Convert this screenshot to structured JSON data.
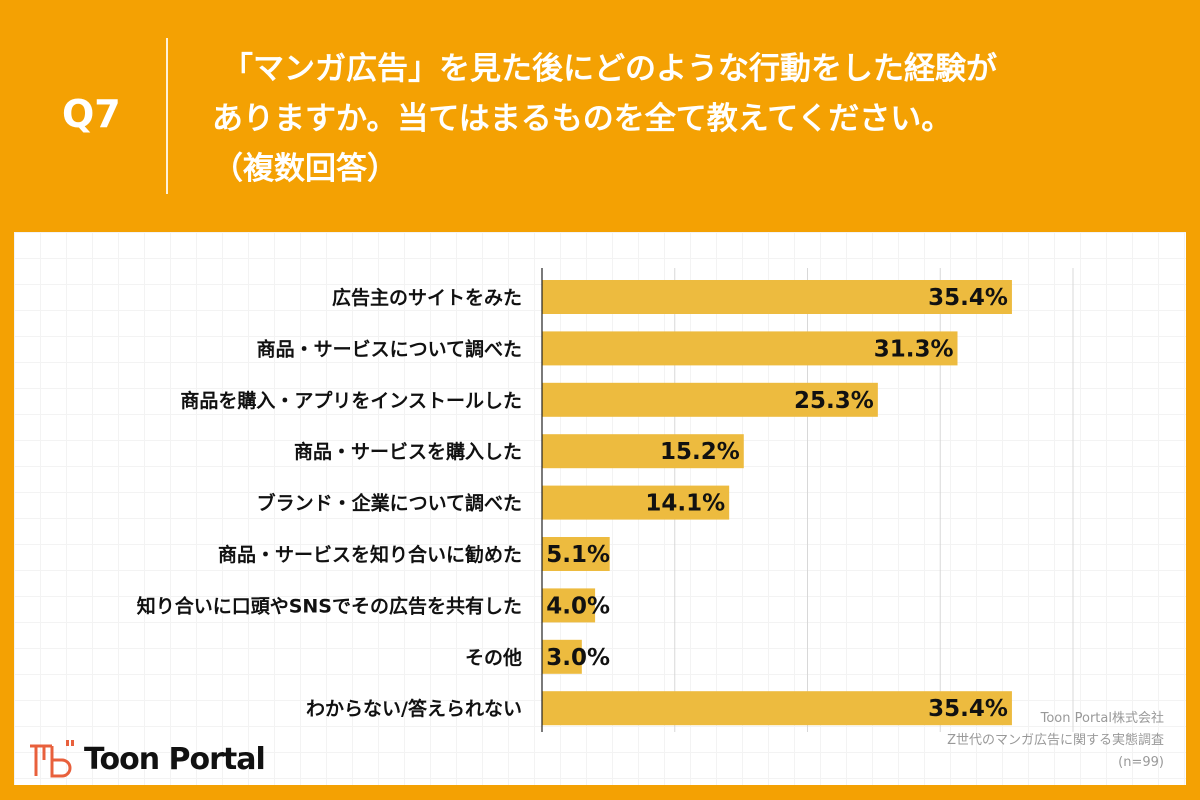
{
  "header": {
    "question_no": "Q7",
    "question_lines": [
      "「マンガ広告」を見た後にどのような行動をした経験が",
      "ありますか。当てはまるものを全て教えてください。",
      "（複数回答）"
    ]
  },
  "colors": {
    "background": "#F4A103",
    "bar": "#EDBB3F"
  },
  "chart_data": {
    "type": "bar",
    "orientation": "horizontal",
    "categories": [
      "広告主のサイトをみた",
      "商品・サービスについて調べた",
      "商品を購入・アプリをインストールした",
      "商品・サービスを購入した",
      "ブランド・企業について調べた",
      "商品・サービスを知り合いに勧めた",
      "知り合いに口頭やSNSでその広告を共有した",
      "その他",
      "わからない/答えられない"
    ],
    "values": [
      35.4,
      31.3,
      25.3,
      15.2,
      14.1,
      5.1,
      4.0,
      3.0,
      35.4
    ],
    "value_labels": [
      "35.4%",
      "31.3%",
      "25.3%",
      "15.2%",
      "14.1%",
      "5.1%",
      "4.0%",
      "3.0%",
      "35.4%"
    ],
    "xlim": [
      0,
      40
    ],
    "grid": true
  },
  "footer": {
    "logo": "Toon Portal",
    "source_lines": [
      "Toon Portal株式会社",
      "Z世代のマンガ広告に関する実態調査",
      "(n=99)"
    ]
  }
}
